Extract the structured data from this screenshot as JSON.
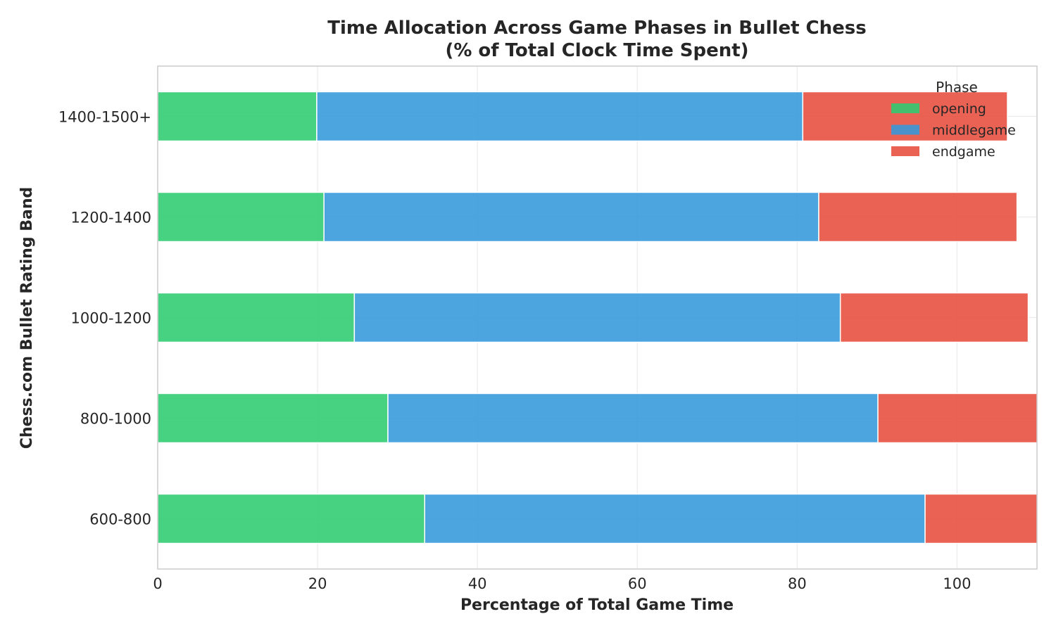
{
  "chart_data": {
    "type": "bar",
    "orientation": "horizontal",
    "stacked": true,
    "title": "Time Allocation Across Game Phases in Bullet Chess",
    "subtitle": "(% of Total Clock Time Spent)",
    "xlabel": "Percentage of Total Game Time",
    "ylabel": "Chess.com Bullet Rating Band",
    "xlim": [
      0,
      110
    ],
    "xticks": [
      0,
      20,
      40,
      60,
      80,
      100
    ],
    "categories": [
      "600-800",
      "800-1000",
      "1000-1200",
      "1200-1400",
      "1400-1500+"
    ],
    "series": [
      {
        "name": "opening",
        "color": "#2ecc71",
        "values": [
          33.4,
          28.8,
          24.6,
          20.8,
          19.9
        ]
      },
      {
        "name": "middlegame",
        "color": "#3498db",
        "values": [
          62.6,
          61.3,
          60.8,
          61.9,
          60.8
        ]
      },
      {
        "name": "endgame",
        "color": "#e74c3c",
        "values": [
          14.5,
          20.5,
          23.5,
          24.8,
          25.6
        ]
      }
    ],
    "legend": {
      "title": "Phase",
      "position": "top-right"
    },
    "grid": true
  }
}
